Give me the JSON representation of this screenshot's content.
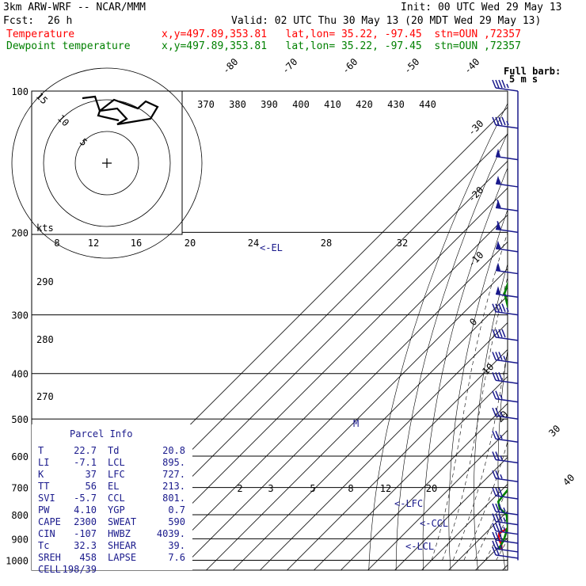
{
  "header": {
    "model": "3km ARW-WRF -- NCAR/MMM",
    "init": "Init: 00 UTC Wed 29 May 13",
    "fcst_label": "Fcst:",
    "fcst_value": "26 h",
    "valid": "Valid: 02 UTC Thu 30 May 13 (20 MDT Wed 29 May 13)",
    "temp_label": "Temperature",
    "temp_info": "x,y=497.89,353.81   lat,lon= 35.22, -97.45  stn=OUN ,72357",
    "dew_label": "Dewpoint temperature",
    "dew_info": "x,y=497.89,353.81   lat,lon= 35.22, -97.45  stn=OUN ,72357"
  },
  "barb_legend": {
    "line1": "Full barb:",
    "line2": "5 m s"
  },
  "hodograph": {
    "units": "kts",
    "rings": [
      "5",
      "10",
      "15"
    ]
  },
  "parcel_info": {
    "title": "Parcel Info",
    "rows": [
      [
        "T",
        "22.7",
        "Td",
        "20.8"
      ],
      [
        "LI",
        "-7.1",
        "LCL",
        "895."
      ],
      [
        "K",
        "37",
        "LFC",
        "727."
      ],
      [
        "TT",
        "56",
        "EL",
        "213."
      ],
      [
        "SVI",
        "-5.7",
        "CCL",
        "801."
      ],
      [
        "PW",
        "4.10",
        "YGP",
        "0.7"
      ],
      [
        "CAPE",
        "2300",
        "SWEAT",
        "590"
      ],
      [
        "CIN",
        "-107",
        "HWBZ",
        "4039."
      ],
      [
        "Tc",
        "32.3",
        "SHEAR",
        "39."
      ],
      [
        "SREH",
        "458",
        "LAPSE",
        "7.6"
      ],
      [
        "CELL",
        "198/39",
        "",
        ""
      ]
    ]
  },
  "level_markers": {
    "el": "<-EL",
    "lfc": "<-LFC",
    "ccl": "<-CCL",
    "lcl": "<-LCL",
    "m": "M"
  },
  "colors": {
    "temperature": "#ff0000",
    "dewpoint": "#008000",
    "barbs": "#1a1a8c",
    "grid": "#000000"
  },
  "chart_data": {
    "type": "line",
    "chart_kind": "skew-T log-p diagram",
    "y_axis": {
      "label": "pressure (hPa)",
      "scale": "log",
      "ticks": [
        100,
        200,
        300,
        400,
        500,
        600,
        700,
        800,
        900,
        1000
      ]
    },
    "isotherm_labels": [
      "-80",
      "-70",
      "-60",
      "-50",
      "-40",
      "-30",
      "-20",
      "-10",
      "0",
      "10",
      "20",
      "30",
      "40"
    ],
    "theta_e_labels": [
      "370",
      "380",
      "390",
      "400",
      "410",
      "420",
      "430",
      "440"
    ],
    "mixing_ratio_labels": [
      "2",
      "3",
      "5",
      "8",
      "12",
      "20"
    ],
    "top_mixing_labels": [
      "8",
      "12",
      "16",
      "20",
      "24",
      "28",
      "32"
    ],
    "theta_labels": [
      "290",
      "280",
      "270"
    ],
    "series": [
      {
        "name": "Temperature",
        "color": "#ff0000",
        "points": [
          [
            100,
            -52
          ],
          [
            130,
            -56
          ],
          [
            170,
            -60
          ],
          [
            200,
            -62
          ],
          [
            215,
            -65
          ],
          [
            230,
            -62
          ],
          [
            260,
            -54
          ],
          [
            300,
            -44
          ],
          [
            350,
            -32
          ],
          [
            400,
            -22
          ],
          [
            450,
            -14
          ],
          [
            500,
            -7
          ],
          [
            550,
            -2
          ],
          [
            600,
            4
          ],
          [
            650,
            8
          ],
          [
            700,
            10
          ],
          [
            750,
            13
          ],
          [
            800,
            17
          ],
          [
            825,
            18
          ],
          [
            850,
            17
          ],
          [
            875,
            15
          ],
          [
            900,
            17
          ],
          [
            925,
            20
          ],
          [
            950,
            22
          ]
        ]
      },
      {
        "name": "Dewpoint temperature",
        "color": "#008000",
        "points": [
          [
            100,
            -72
          ],
          [
            120,
            -78
          ],
          [
            150,
            -85
          ],
          [
            180,
            -88
          ],
          [
            200,
            -92
          ],
          [
            230,
            -80
          ],
          [
            270,
            -72
          ],
          [
            300,
            -62
          ],
          [
            350,
            -46
          ],
          [
            400,
            -33
          ],
          [
            450,
            -23
          ],
          [
            500,
            -14
          ],
          [
            550,
            -8
          ],
          [
            600,
            -3
          ],
          [
            650,
            0
          ],
          [
            700,
            2
          ],
          [
            750,
            3
          ],
          [
            775,
            6
          ],
          [
            800,
            11
          ],
          [
            850,
            16
          ],
          [
            900,
            19
          ],
          [
            950,
            21
          ]
        ]
      }
    ],
    "wind_barbs": [
      {
        "p": 100,
        "kts": 45
      },
      {
        "p": 120,
        "kts": 45
      },
      {
        "p": 140,
        "kts": 50
      },
      {
        "p": 160,
        "kts": 55
      },
      {
        "p": 180,
        "kts": 60
      },
      {
        "p": 200,
        "kts": 60
      },
      {
        "p": 220,
        "kts": 55
      },
      {
        "p": 245,
        "kts": 50
      },
      {
        "p": 275,
        "kts": 50
      },
      {
        "p": 300,
        "kts": 45
      },
      {
        "p": 340,
        "kts": 40
      },
      {
        "p": 380,
        "kts": 35
      },
      {
        "p": 420,
        "kts": 30
      },
      {
        "p": 460,
        "kts": 25
      },
      {
        "p": 500,
        "kts": 25
      },
      {
        "p": 560,
        "kts": 25
      },
      {
        "p": 620,
        "kts": 25
      },
      {
        "p": 680,
        "kts": 25
      },
      {
        "p": 740,
        "kts": 30
      },
      {
        "p": 800,
        "kts": 35
      },
      {
        "p": 840,
        "kts": 35
      },
      {
        "p": 880,
        "kts": 35
      },
      {
        "p": 920,
        "kts": 30
      },
      {
        "p": 960,
        "kts": 25
      },
      {
        "p": 990,
        "kts": 20
      }
    ]
  }
}
